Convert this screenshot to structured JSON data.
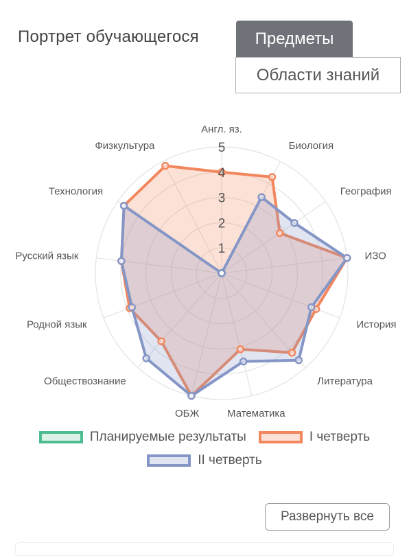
{
  "header": {
    "title": "Портрет обучающегося"
  },
  "tabs": [
    {
      "label": "Предметы",
      "active": true
    },
    {
      "label": "Области знаний",
      "active": false
    }
  ],
  "chart_data": {
    "type": "radar",
    "axes": [
      "Англ. яз.",
      "Биология",
      "География",
      "ИЗО",
      "История",
      "Литература",
      "Математика",
      "ОБЖ",
      "Обществознание",
      "Родной язык",
      "Русский язык",
      "Технология",
      "Физкультура"
    ],
    "r_ticks": [
      "1",
      "2",
      "3",
      "4",
      "5"
    ],
    "r_range": [
      0,
      5
    ],
    "grid": true,
    "legend_position": "bottom",
    "series": [
      {
        "name": "Планируемые результаты",
        "color": "#4dbd8f",
        "fill": "rgba(77,189,143,0.2)",
        "values": [
          0,
          0,
          0,
          0,
          0,
          0,
          0,
          0,
          0,
          0,
          0,
          0,
          0
        ]
      },
      {
        "name": "I четверть",
        "color": "#f2875e",
        "fill": "rgba(242,135,94,0.25)",
        "values": [
          4,
          4.3,
          2.8,
          5,
          4,
          4.2,
          3.1,
          5,
          3.6,
          3.9,
          4,
          4.7,
          4.8
        ]
      },
      {
        "name": "II четверть",
        "color": "#8596c6",
        "fill": "rgba(133,150,198,0.25)",
        "values": [
          0,
          3.4,
          3.5,
          5,
          3.8,
          4.6,
          3.6,
          5,
          4.5,
          3.8,
          4,
          4.7,
          0
        ]
      }
    ]
  },
  "expand_button": {
    "label": "Развернуть все"
  }
}
